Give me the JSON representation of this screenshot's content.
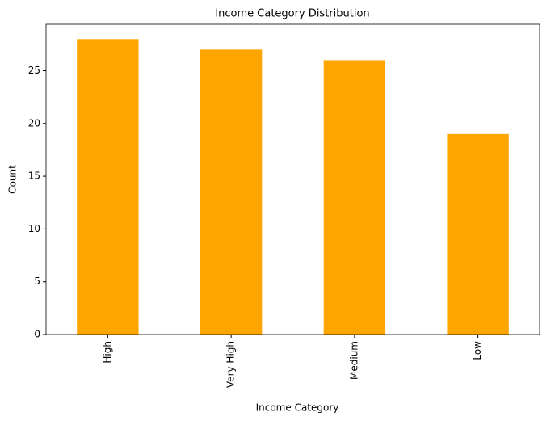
{
  "chart_data": {
    "type": "bar",
    "title": "Income Category Distribution",
    "x_label": "Income Category",
    "y_label": "Count",
    "categories": [
      "High",
      "Very High",
      "Medium",
      "Low"
    ],
    "values": [
      28,
      27,
      26,
      19
    ],
    "color": "#ffa500",
    "ylim": [
      0,
      29.4
    ],
    "yticks": [
      0,
      5,
      10,
      15,
      20,
      25
    ],
    "grid": false
  }
}
